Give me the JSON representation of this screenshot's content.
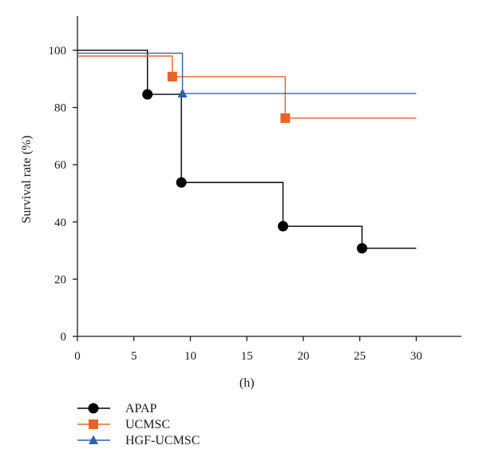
{
  "chart_data": {
    "type": "line",
    "step": true,
    "xlabel": "(h)",
    "ylabel": "Survival rate (%)",
    "xlim": [
      0,
      34
    ],
    "ylim": [
      0,
      112
    ],
    "xticks": [
      0,
      5,
      10,
      15,
      20,
      25,
      30
    ],
    "yticks": [
      0,
      20,
      40,
      60,
      80,
      100
    ],
    "legend_position": "bottom-left",
    "grid": false,
    "series": [
      {
        "name": "APAP",
        "color": "#000000",
        "marker": "circle",
        "x": [
          0,
          6.2,
          9.2,
          18.2,
          25.2,
          30
        ],
        "y": [
          100,
          84.6,
          53.8,
          38.5,
          30.8,
          30.8
        ],
        "marker_x": [
          6.2,
          9.2,
          18.2,
          25.2
        ],
        "marker_y": [
          84.6,
          53.8,
          38.5,
          30.8
        ]
      },
      {
        "name": "UCMSC",
        "color": "#e8632b",
        "marker": "square",
        "x": [
          0,
          8.4,
          18.4,
          30
        ],
        "y": [
          98,
          90.8,
          76.3,
          76.3
        ],
        "marker_x": [
          8.4,
          18.4
        ],
        "marker_y": [
          90.8,
          76.3
        ]
      },
      {
        "name": "HGF-UCMSC",
        "color": "#2e63a6",
        "marker": "triangle",
        "x": [
          0,
          9.3,
          30
        ],
        "y": [
          99,
          84.9,
          84.9
        ],
        "marker_x": [
          9.3
        ],
        "marker_y": [
          84.9
        ]
      }
    ]
  }
}
